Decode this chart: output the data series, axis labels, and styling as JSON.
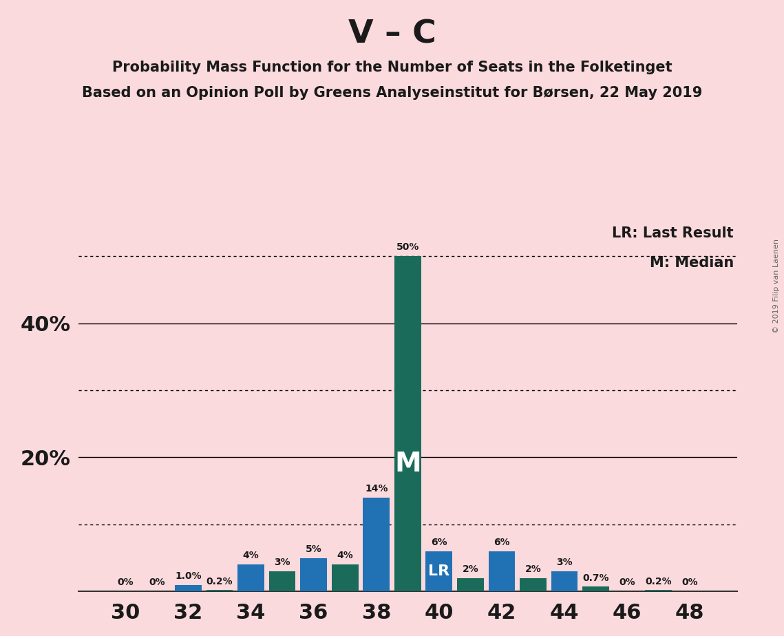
{
  "title_main": "V – C",
  "subtitle1": "Probability Mass Function for the Number of Seats in the Folketinget",
  "subtitle2": "Based on an Opinion Poll by Greens Analyseinstitut for Børsen, 22 May 2019",
  "copyright": "© 2019 Filip van Laenen",
  "background_color": "#fadadd",
  "bar_color_blue": "#2171b5",
  "bar_color_teal": "#1a6b5a",
  "seats": [
    30,
    31,
    32,
    33,
    34,
    35,
    36,
    37,
    38,
    39,
    40,
    41,
    42,
    43,
    44,
    45,
    46,
    47,
    48
  ],
  "values": [
    0.0,
    0.0,
    1.0,
    0.2,
    4.0,
    3.0,
    5.0,
    4.0,
    14.0,
    50.0,
    6.0,
    2.0,
    6.0,
    2.0,
    3.0,
    0.7,
    0.0,
    0.2,
    0.0
  ],
  "colors": [
    "blue",
    "blue",
    "blue",
    "teal",
    "blue",
    "teal",
    "blue",
    "teal",
    "blue",
    "teal",
    "blue",
    "teal",
    "blue",
    "teal",
    "blue",
    "teal",
    "blue",
    "teal",
    "teal"
  ],
  "labels": [
    "0%",
    "0%",
    "1.0%",
    "0.2%",
    "4%",
    "3%",
    "5%",
    "4%",
    "14%",
    "50%",
    "6%",
    "2%",
    "6%",
    "2%",
    "3%",
    "0.7%",
    "0%",
    "0.2%",
    "0%"
  ],
  "median_seat": 39,
  "lr_seat": 40,
  "ylim": [
    0,
    55
  ],
  "ytick_labeled": [
    20,
    40
  ],
  "ytick_labels": [
    "20%",
    "40%"
  ],
  "xticks": [
    30,
    32,
    34,
    36,
    38,
    40,
    42,
    44,
    46,
    48
  ],
  "dotted_lines": [
    10,
    30,
    50
  ],
  "solid_lines": [
    20,
    40
  ],
  "legend_lr": "LR: Last Result",
  "legend_m": "M: Median"
}
